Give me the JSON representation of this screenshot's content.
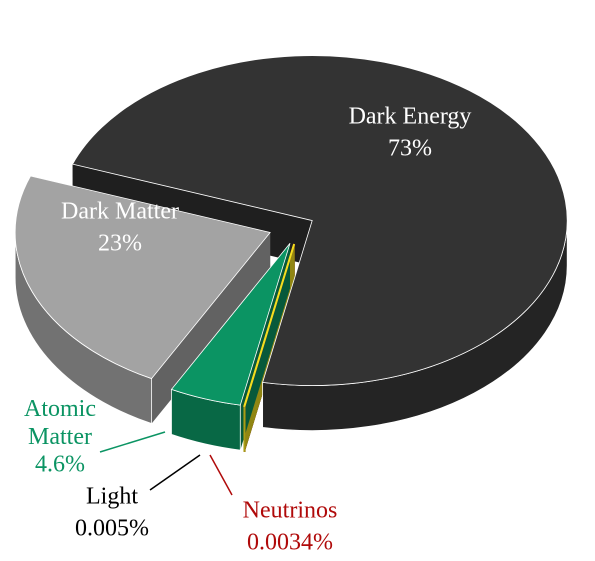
{
  "chart_data": {
    "type": "pie",
    "categories": [
      "Dark Energy",
      "Neutrinos",
      "Light",
      "Atomic Matter",
      "Dark Matter"
    ],
    "values": [
      73,
      0.0034,
      0.005,
      4.6,
      23
    ],
    "value_labels": [
      "73%",
      "0.0034%",
      "0.005%",
      "4.6%",
      "23%"
    ],
    "colors": [
      "#333333",
      "#b00a0a",
      "#f0e020",
      "#0b9463",
      "#a3a3a3"
    ]
  }
}
